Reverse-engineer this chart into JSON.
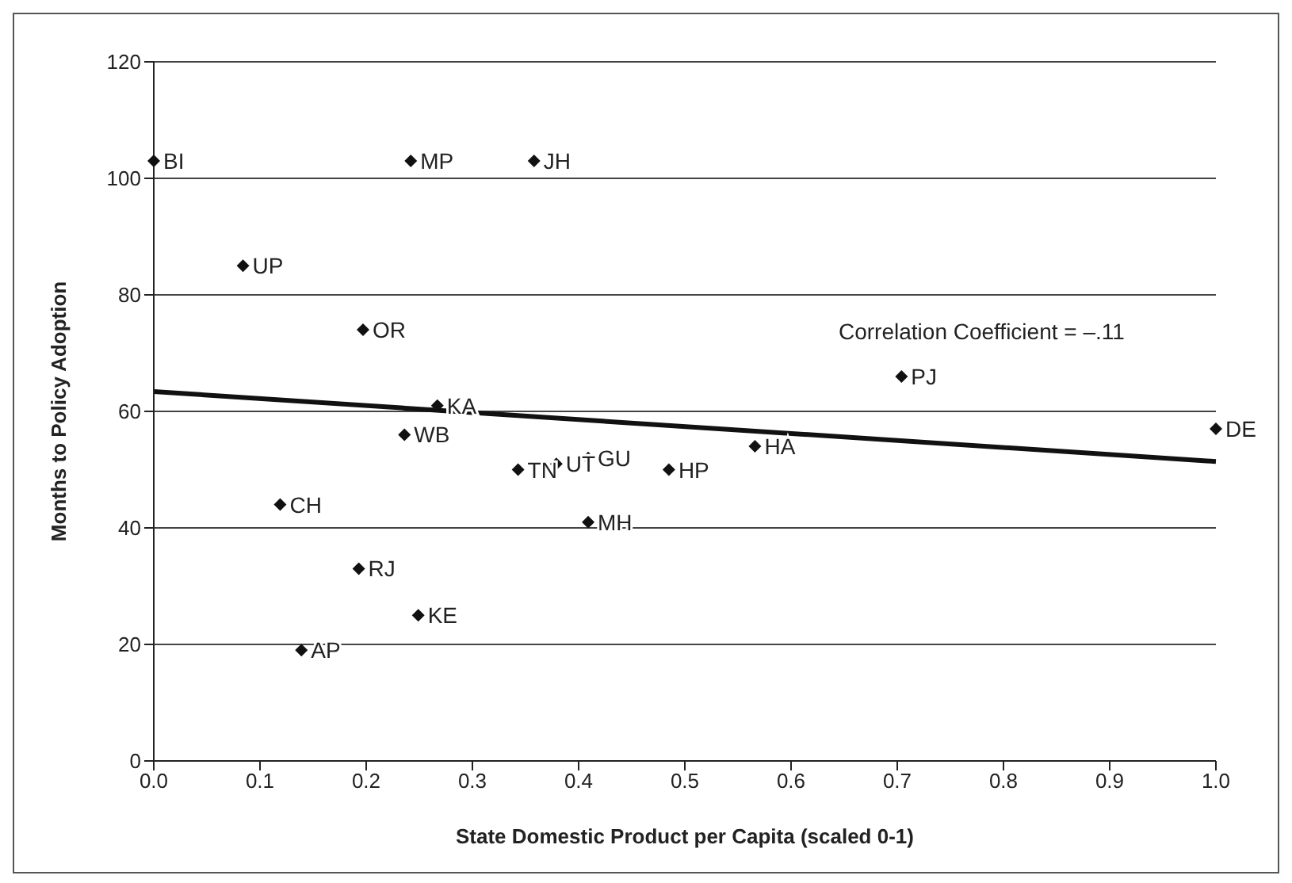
{
  "chart_data": {
    "type": "scatter",
    "xlabel": "State Domestic Product per Capita (scaled 0-1)",
    "ylabel": "Months to Policy Adoption",
    "annotations": [
      "Correlation Coefficient = –.11"
    ],
    "xlim": [
      0,
      1
    ],
    "xticks": [
      {
        "value": 0,
        "label": "0.0"
      },
      0.1,
      0.2,
      0.3,
      0.4,
      0.5,
      0.6,
      0.7,
      0.8,
      0.9,
      {
        "value": 1,
        "label": "1.0"
      }
    ],
    "ylim": [
      0,
      120
    ],
    "yticks": [
      0,
      20,
      40,
      60,
      80,
      100,
      120
    ],
    "grid": "y",
    "series": [
      {
        "color": "#111111",
        "marker": "diamond",
        "x": [
          0,
          0.242,
          0.358,
          0.084,
          0.197,
          0.267,
          0.236,
          0.704,
          1.0,
          0.566,
          0.485,
          0.409,
          0.379,
          0.343,
          0.409,
          0.119,
          0.193,
          0.249,
          0.139
        ],
        "values": [
          103,
          103,
          103,
          85,
          74,
          61,
          56,
          66,
          57,
          54,
          50,
          52,
          51,
          50,
          41,
          44,
          33,
          25,
          19
        ],
        "value_labels": [
          "BI",
          "MP",
          "JH",
          "UP",
          "OR",
          "KA",
          "WB",
          "PJ",
          "DE",
          "HA",
          "HP",
          "GU",
          "UT",
          "TN",
          "MH",
          "CH",
          "RJ",
          "KE",
          "AP"
        ]
      },
      {
        "type": "line",
        "color": "#111111",
        "x": [
          0,
          1
        ],
        "values": [
          63.4,
          51.4
        ],
        "line_style": "solid"
      }
    ]
  }
}
